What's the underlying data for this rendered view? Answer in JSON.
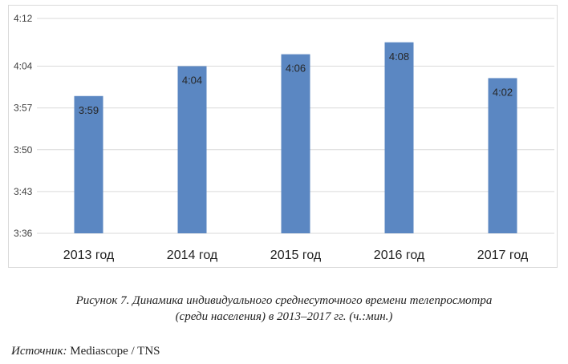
{
  "chart_data": {
    "type": "bar",
    "categories": [
      "2013 год",
      "2014 год",
      "2015 год",
      "2016 год",
      "2017 год"
    ],
    "values_minutes": [
      239,
      244,
      246,
      248,
      242
    ],
    "data_labels": [
      "3:59",
      "4:04",
      "4:06",
      "4:08",
      "4:02"
    ],
    "ylim_minutes": [
      216,
      252
    ],
    "y_ticks_minutes": [
      216,
      223,
      230,
      237,
      244,
      252
    ],
    "y_tick_labels": [
      "3:36",
      "3:43",
      "3:50",
      "3:57",
      "4:04",
      "4:12"
    ],
    "grid": true,
    "bar_color": "#5b87c2",
    "grid_color": "#d9d9d9"
  },
  "caption": {
    "line1": "Рисунок 7. Динамика индивидуального среднесуточного времени телепросмотра",
    "line2": "(среди населения) в 2013–2017 гг. (ч.:мин.)"
  },
  "source": {
    "label": "Источник:",
    "text": " Mediascope / TNS"
  }
}
